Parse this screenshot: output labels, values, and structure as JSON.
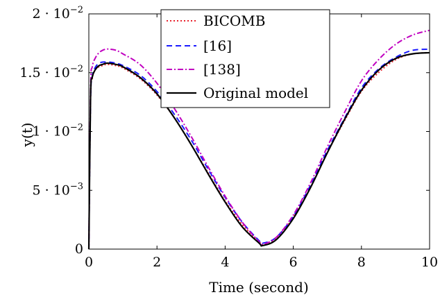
{
  "chart_data": {
    "type": "line",
    "title": "",
    "xlabel": "Time (second)",
    "ylabel": "y(t)",
    "xlim": [
      0,
      10
    ],
    "ylim": [
      0,
      0.02
    ],
    "grid": false,
    "legend_position": "top-center",
    "x_ticks": [
      0,
      2,
      4,
      6,
      8,
      10
    ],
    "x_tick_labels": [
      "0",
      "2",
      "4",
      "6",
      "8",
      "10"
    ],
    "y_ticks": [
      0,
      0.005,
      0.01,
      0.015,
      0.02
    ],
    "y_tick_labels": [
      {
        "mantissa": "0",
        "exponent": ""
      },
      {
        "mantissa": "5 · 10",
        "exponent": "−3"
      },
      {
        "mantissa": "1 · 10",
        "exponent": "−2"
      },
      {
        "mantissa": "1.5 · 10",
        "exponent": "−2"
      },
      {
        "mantissa": "2 · 10",
        "exponent": "−2"
      }
    ],
    "series": [
      {
        "name": "BICOMB",
        "color": "#e8202a",
        "dash": "dotted",
        "x": [
          0,
          0.05,
          0.1,
          0.2,
          0.3,
          0.4,
          0.5,
          0.6,
          0.8,
          1,
          1.5,
          2,
          2.5,
          3,
          3.5,
          4,
          4.5,
          5,
          5.1,
          5.5,
          6,
          6.5,
          7,
          7.5,
          8,
          8.5,
          9,
          9.5,
          10
        ],
        "y": [
          0,
          0.0125,
          0.0145,
          0.0153,
          0.0155,
          0.0156,
          0.0157,
          0.0157,
          0.0156,
          0.0154,
          0.0145,
          0.0131,
          0.0112,
          0.0089,
          0.0065,
          0.0041,
          0.0021,
          0.00063,
          0.0004,
          0.0009,
          0.0027,
          0.0052,
          0.0082,
          0.0109,
          0.0134,
          0.015,
          0.0161,
          0.0166,
          0.0167
        ]
      },
      {
        "name": "[16]",
        "color": "#1a1aff",
        "dash": "dashed",
        "x": [
          0,
          0.05,
          0.1,
          0.2,
          0.3,
          0.4,
          0.5,
          0.6,
          0.8,
          1,
          1.5,
          2,
          2.5,
          3,
          3.5,
          4,
          4.5,
          5,
          5.1,
          5.5,
          6,
          6.5,
          7,
          7.5,
          8,
          8.5,
          9,
          9.5,
          10
        ],
        "y": [
          0,
          0.0125,
          0.0147,
          0.0155,
          0.0158,
          0.0159,
          0.0159,
          0.0159,
          0.0158,
          0.0156,
          0.0148,
          0.0134,
          0.0115,
          0.0093,
          0.0068,
          0.0044,
          0.0023,
          0.0007,
          0.0005,
          0.001,
          0.0028,
          0.0054,
          0.0084,
          0.0111,
          0.0137,
          0.0153,
          0.0163,
          0.0169,
          0.017
        ]
      },
      {
        "name": "[138]",
        "color": "#c000c0",
        "dash": "dashdot",
        "x": [
          0,
          0.05,
          0.1,
          0.2,
          0.3,
          0.4,
          0.5,
          0.6,
          0.8,
          1,
          1.5,
          2,
          2.5,
          3,
          3.5,
          4,
          4.5,
          5,
          5.1,
          5.5,
          6,
          6.5,
          7,
          7.5,
          8,
          8.5,
          9,
          9.5,
          10
        ],
        "y": [
          0,
          0.0135,
          0.0155,
          0.0163,
          0.0167,
          0.0169,
          0.017,
          0.017,
          0.0169,
          0.0166,
          0.0157,
          0.0141,
          0.012,
          0.0096,
          0.007,
          0.0045,
          0.0023,
          0.0006,
          0.0004,
          0.001,
          0.0029,
          0.0056,
          0.0087,
          0.0116,
          0.0143,
          0.0161,
          0.0174,
          0.0182,
          0.0186
        ]
      },
      {
        "name": "Original model",
        "color": "#000000",
        "dash": "solid",
        "x": [
          0,
          0.05,
          0.1,
          0.2,
          0.3,
          0.4,
          0.5,
          0.6,
          0.8,
          1,
          1.5,
          2,
          2.5,
          3,
          3.5,
          4,
          4.5,
          5,
          5.1,
          5.5,
          6,
          6.5,
          7,
          7.5,
          8,
          8.5,
          9,
          9.5,
          10
        ],
        "y": [
          0,
          0.0128,
          0.0146,
          0.0153,
          0.0156,
          0.0157,
          0.0158,
          0.0158,
          0.0157,
          0.0155,
          0.0146,
          0.0132,
          0.0112,
          0.0089,
          0.0064,
          0.004,
          0.0019,
          0.0005,
          0.0003,
          0.0008,
          0.0026,
          0.0052,
          0.0082,
          0.011,
          0.0135,
          0.0152,
          0.0162,
          0.0166,
          0.0167
        ]
      }
    ]
  }
}
